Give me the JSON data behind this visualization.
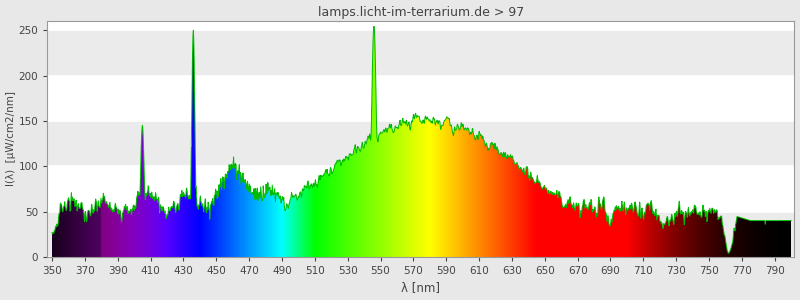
{
  "title": "lamps.licht-im-terrarium.de > 97",
  "xlabel": "λ [nm]",
  "ylabel": "I(λ)  [μW/cm2/nm]",
  "xlim": [
    347,
    802
  ],
  "ylim": [
    0,
    260
  ],
  "xticks": [
    350,
    370,
    390,
    410,
    430,
    450,
    470,
    490,
    510,
    530,
    550,
    570,
    590,
    610,
    630,
    650,
    670,
    690,
    710,
    730,
    750,
    770,
    790
  ],
  "yticks": [
    0,
    50,
    100,
    150,
    200,
    250
  ],
  "background_color": "#e8e8e8",
  "plot_bg_color": "#ffffff",
  "line_color": "#00bb00",
  "title_color": "#444444",
  "grid_color": "#e0e0e0",
  "figsize": [
    8.0,
    3.0
  ],
  "dpi": 100
}
